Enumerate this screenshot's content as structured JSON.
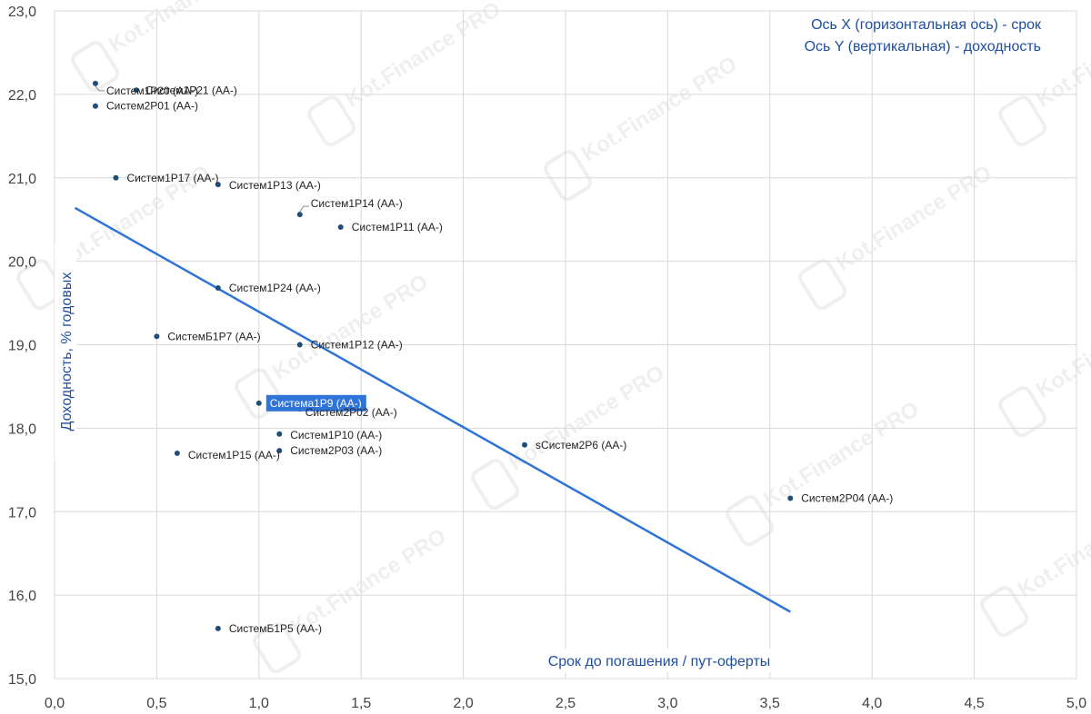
{
  "note": {
    "line1": "Ось X (горизонтальная ось) - срок",
    "line2": "Ось Y (вертикальная) - доходность"
  },
  "watermark": "Kot.Finance PRO",
  "colors": {
    "point": "#1f4e79",
    "trend": "#2f74d8",
    "grid": "#d9d9d9",
    "axis_title": "#1f4e9e",
    "highlight_label_bg": "#2f74d8"
  },
  "chart_data": {
    "type": "scatter",
    "xlabel": "Срок до погашения / пут-оферты",
    "ylabel": "Доходность, % годовых",
    "xlim": [
      0,
      5
    ],
    "ylim": [
      15,
      23
    ],
    "xticks": [
      "0,0",
      "0,5",
      "1,0",
      "1,5",
      "2,0",
      "2,5",
      "3,0",
      "3,5",
      "4,0",
      "4,5",
      "5,0"
    ],
    "yticks": [
      "15,0",
      "16,0",
      "17,0",
      "18,0",
      "19,0",
      "20,0",
      "21,0",
      "22,0",
      "23,0"
    ],
    "grid": true,
    "points": [
      {
        "label": "Систем1Р20 (АА-)",
        "x": 0.2,
        "y": 22.13
      },
      {
        "label": "Систем1Р21 (АА-)",
        "x": 0.4,
        "y": 22.05
      },
      {
        "label": "Систем2Р01 (АА-)",
        "x": 0.2,
        "y": 21.86
      },
      {
        "label": "Систем1Р17 (АА-)",
        "x": 0.3,
        "y": 21.0
      },
      {
        "label": "Систем1Р13 (АА-)",
        "x": 0.8,
        "y": 20.92
      },
      {
        "label": "Систем1Р14 (АА-)",
        "x": 1.2,
        "y": 20.56
      },
      {
        "label": "Систем1Р11 (АА-)",
        "x": 1.4,
        "y": 20.41
      },
      {
        "label": "Систем1Р24 (АА-)",
        "x": 0.8,
        "y": 19.68
      },
      {
        "label": "СистемБ1Р7 (АА-)",
        "x": 0.5,
        "y": 19.1
      },
      {
        "label": "Систем1Р12 (АА-)",
        "x": 1.2,
        "y": 19.0
      },
      {
        "label": "Система1Р9 (АА-)",
        "x": 1.0,
        "y": 18.3
      },
      {
        "label": "Систем2Р02 (АА-)",
        "x": 1.2,
        "y": 18.23
      },
      {
        "label": "Систем1Р10 (АА-)",
        "x": 1.1,
        "y": 17.93
      },
      {
        "label": "Систем2Р03 (АА-)",
        "x": 1.1,
        "y": 17.73
      },
      {
        "label": "Систем1Р15 (АА-)",
        "x": 0.6,
        "y": 17.7
      },
      {
        "label": "sСистем2Р6 (АА-)",
        "x": 2.3,
        "y": 17.8
      },
      {
        "label": "Систем2Р04 (АА-)",
        "x": 3.6,
        "y": 17.16
      },
      {
        "label": "СистемБ1Р5 (АА-)",
        "x": 0.8,
        "y": 15.6
      }
    ],
    "trendline": {
      "x": [
        0.1,
        3.6
      ],
      "y": [
        20.64,
        15.8
      ]
    },
    "highlighted_point": "Система1Р9 (АА-)"
  }
}
